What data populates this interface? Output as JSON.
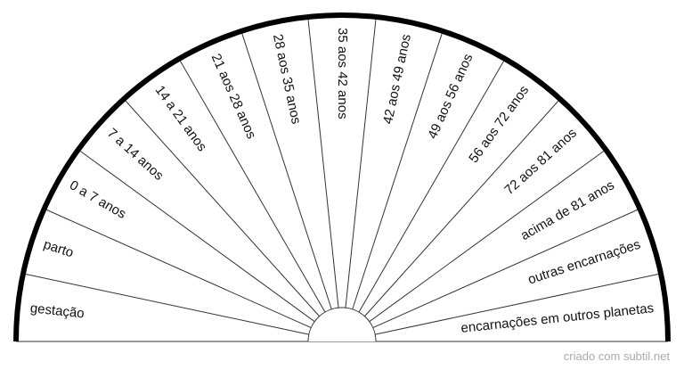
{
  "labels": [
    "gestação",
    "parto",
    "0 a 7 anos",
    "7 a 14 anos",
    "14 a 21 anos",
    "21 aos 28 anos",
    "28 aos 35 anos",
    "35 aos 42 anos",
    "42 aos 49 anos",
    "49 aos 56 anos",
    "56 aos 72 anos",
    "72 aos 81 anos",
    "acima de 81 anos",
    "outras encarnações",
    "encarnações em outros planetas"
  ],
  "footer": "criado com subtil.net"
}
